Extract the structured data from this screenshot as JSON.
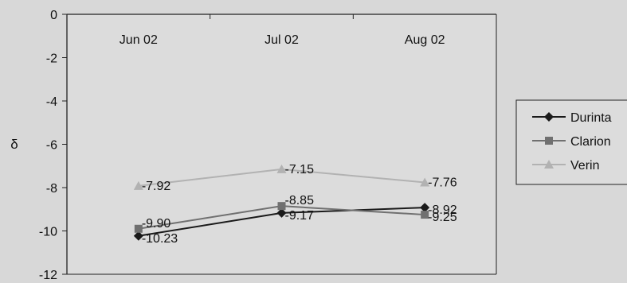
{
  "chart_data": {
    "type": "line",
    "title": "",
    "xlabel": "",
    "ylabel": "δ",
    "categories": [
      "Jun 02",
      "Jul 02",
      "Aug 02"
    ],
    "ylim": [
      -12,
      0
    ],
    "yticks": [
      0,
      -2,
      -4,
      -6,
      -8,
      -10,
      -12
    ],
    "grid": false,
    "legend_position": "right",
    "series": [
      {
        "name": "Durinta",
        "values": [
          -10.23,
          -9.17,
          -8.92
        ],
        "labels": [
          "-10.23",
          "-9.17",
          "-8.92"
        ],
        "color": "#1a1a1a",
        "marker": "diamond"
      },
      {
        "name": "Clarion",
        "values": [
          -9.9,
          -8.85,
          -9.25
        ],
        "labels": [
          "-9.90",
          "-8.85",
          "-9.25"
        ],
        "color": "#707070",
        "marker": "square"
      },
      {
        "name": "Verin",
        "values": [
          -7.92,
          -7.15,
          -7.76
        ],
        "labels": [
          "-7.92",
          "-7.15",
          "-7.76"
        ],
        "color": "#b2b2b2",
        "marker": "triangle"
      }
    ]
  }
}
